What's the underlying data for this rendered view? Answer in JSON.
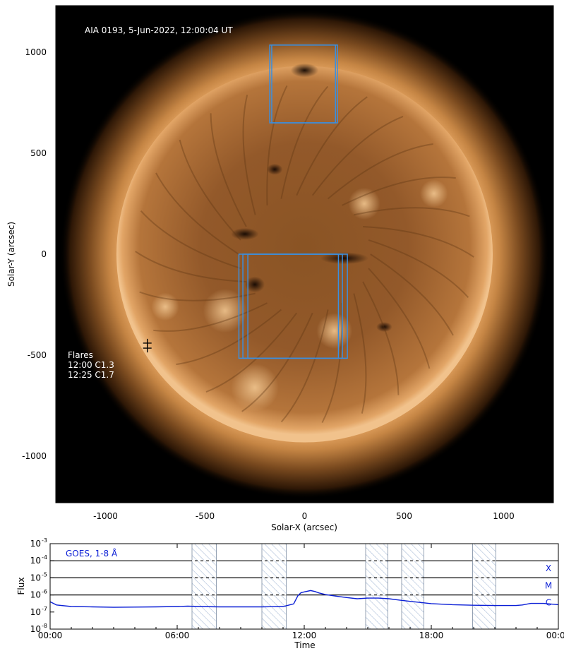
{
  "top_panel": {
    "title": "AIA 0193, 5-Jun-2022, 12:00:04 UT",
    "xlabel": "Solar-X (arcsec)",
    "ylabel": "Solar-Y (arcsec)",
    "xlim": [
      -1250,
      1250
    ],
    "ylim": [
      -1230,
      1230
    ],
    "x_ticks": [
      -1000,
      -500,
      0,
      500,
      1000
    ],
    "x_tick_labels": [
      "-1000",
      "-500",
      "0",
      "500",
      "1000"
    ],
    "y_ticks": [
      1000,
      500,
      0,
      -500,
      -1000
    ],
    "y_tick_labels": [
      "1000",
      "500",
      "0",
      "-500",
      "-1000"
    ],
    "solar_radius_arcsec": 945,
    "colors": {
      "background": "#000000",
      "box": "#3a8fe0",
      "text": "#ffffff"
    },
    "flares": {
      "heading": "Flares",
      "entries": [
        "12:00 C1.3",
        "12:25 C1.7"
      ],
      "markers": [
        {
          "x": -790,
          "y": -440
        },
        {
          "x": -790,
          "y": -465
        }
      ]
    },
    "boxes": [
      {
        "x0": -175,
        "y0": 650,
        "x1": 155,
        "y1": 1035
      },
      {
        "x0": -165,
        "y0": 650,
        "x1": 165,
        "y1": 1035
      },
      {
        "x0": -330,
        "y0": -515,
        "x1": 170,
        "y1": 0
      },
      {
        "x0": -310,
        "y0": -515,
        "x1": 190,
        "y1": 0
      },
      {
        "x0": -285,
        "y0": -515,
        "x1": 215,
        "y1": 0
      }
    ]
  },
  "bottom_panel": {
    "legend": "GOES, 1-8 Å",
    "xlabel": "Time",
    "ylabel": "Flux",
    "x_tick_labels": [
      "00:00",
      "06:00",
      "12:00",
      "18:00",
      "00:00"
    ],
    "x_ticks_hours": [
      0,
      6,
      12,
      18,
      24
    ],
    "y_ticks_exp": [
      -8,
      -7,
      -6,
      -5,
      -4,
      -3
    ],
    "y_tick_base": "10",
    "class_lines": [
      {
        "label": "X",
        "exp": -4
      },
      {
        "label": "M",
        "exp": -5
      },
      {
        "label": "C",
        "exp": -6
      }
    ],
    "colors": {
      "curve": "#0b1fd6",
      "hatch": "#9ab0d0",
      "class_label": "#0b1fd6"
    },
    "hatched_intervals_hours": [
      [
        6.7,
        7.85
      ],
      [
        10.0,
        11.15
      ],
      [
        14.9,
        15.95
      ],
      [
        16.6,
        17.65
      ],
      [
        19.95,
        21.05
      ]
    ],
    "chart_data": {
      "type": "line",
      "title": "",
      "xlabel": "Time",
      "ylabel": "Flux",
      "y_scale": "log",
      "ylim": [
        1e-08,
        0.001
      ],
      "xlim_hours": [
        0,
        24
      ],
      "series": [
        {
          "name": "GOES, 1-8 Å",
          "x_hours": [
            0,
            0.3,
            1,
            2,
            3,
            4,
            5,
            6,
            6.5,
            7,
            8,
            9,
            10,
            11,
            11.5,
            11.7,
            11.85,
            12.0,
            12.3,
            12.5,
            12.7,
            13.0,
            13.5,
            14,
            14.5,
            15,
            15.5,
            16,
            16.5,
            17,
            17.5,
            18,
            19,
            20,
            21,
            22,
            22.3,
            22.7,
            23.3,
            24
          ],
          "y": [
            4e-07,
            2.6e-07,
            2.1e-07,
            2e-07,
            1.9e-07,
            1.95e-07,
            2e-07,
            2.1e-07,
            2.2e-07,
            2.1e-07,
            2e-07,
            2e-07,
            2e-07,
            2.1e-07,
            3e-07,
            9e-07,
            1.35e-06,
            1.5e-06,
            1.8e-06,
            1.6e-06,
            1.3e-06,
            1.05e-06,
            8.5e-07,
            7e-07,
            6e-07,
            6.5e-07,
            6.5e-07,
            6e-07,
            5e-07,
            4.2e-07,
            3.6e-07,
            3.1e-07,
            2.7e-07,
            2.5e-07,
            2.4e-07,
            2.4e-07,
            2.6e-07,
            3.2e-07,
            3.2e-07,
            2.7e-07
          ]
        }
      ]
    }
  }
}
